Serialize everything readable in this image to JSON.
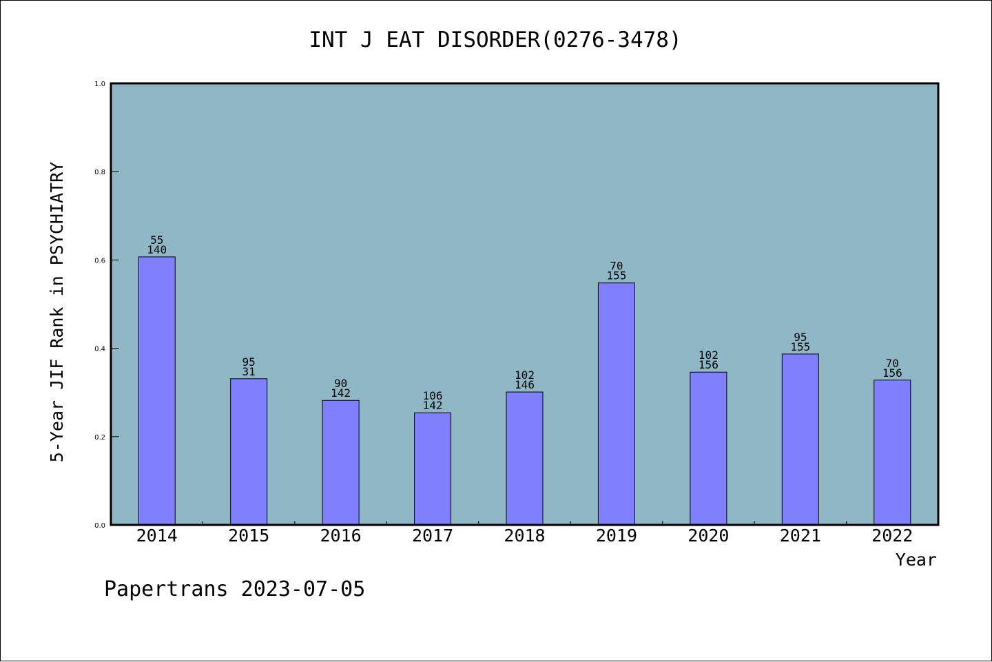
{
  "chart_data": {
    "type": "bar",
    "title": "INT J EAT DISORDER(0276-3478)",
    "xlabel": "Year",
    "ylabel": "5-Year JIF Rank in PSYCHIATRY",
    "categories": [
      "2014",
      "2015",
      "2016",
      "2017",
      "2018",
      "2019",
      "2020",
      "2021",
      "2022"
    ],
    "values": [
      0.607,
      0.331,
      0.282,
      0.254,
      0.301,
      0.548,
      0.346,
      0.387,
      0.328
    ],
    "labels_top": [
      "55",
      "95",
      "90",
      "106",
      "102",
      "70",
      "102",
      "95",
      "70"
    ],
    "labels_bottom": [
      "140",
      "31",
      "142",
      "142",
      "146",
      "155",
      "156",
      "155",
      "156"
    ],
    "ylim": [
      0,
      1.0
    ],
    "yticks": [
      "0.0",
      "0.2",
      "0.4",
      "0.6",
      "0.8",
      "1.0"
    ],
    "grid": false,
    "colors": {
      "plot_background": "#8fb7c6",
      "bar": "#8080ff"
    }
  },
  "footer": "Papertrans 2023-07-05"
}
